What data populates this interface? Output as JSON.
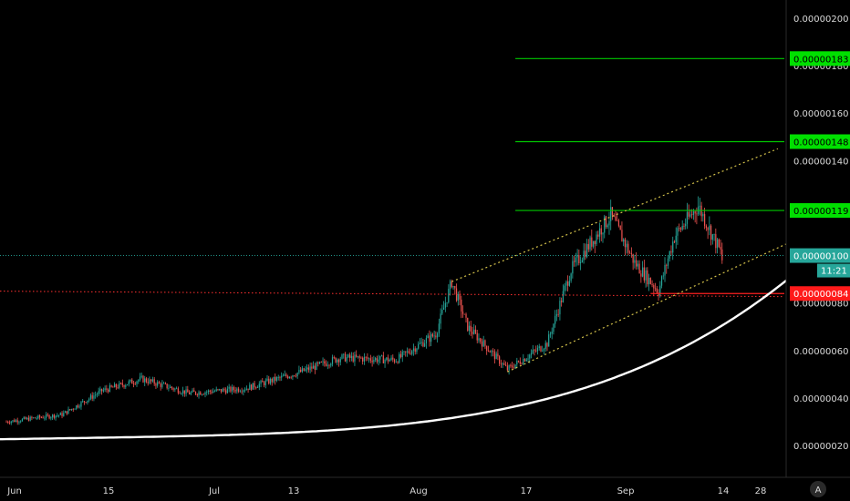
{
  "chart_data": {
    "type": "candlestick",
    "title": "",
    "x_tick_labels": [
      "Jun",
      "15",
      "Jul",
      "13",
      "Aug",
      "17",
      "Sep",
      "14",
      "28"
    ],
    "y_ticks": [
      "0.00000020",
      "0.00000040",
      "0.00000060",
      "0.00000080",
      "0.00000100",
      "0.00000120",
      "0.00000140",
      "0.00000160",
      "0.00000180",
      "0.00000200"
    ],
    "y_tick_values": [
      20,
      40,
      60,
      80,
      100,
      120,
      140,
      160,
      180,
      200
    ],
    "ylim": [
      11,
      210
    ],
    "grid": false,
    "price_scale": "right",
    "current_price": {
      "label": "0.00000100",
      "value": 100,
      "countdown": "11:21",
      "color": "#26a69a"
    },
    "levels": [
      {
        "label": "0.00000183",
        "value": 183,
        "color": "#00c800",
        "label_bg": "#00e000"
      },
      {
        "label": "0.00000148",
        "value": 148,
        "color": "#00c800",
        "label_bg": "#00e000"
      },
      {
        "label": "0.00000119",
        "value": 119,
        "color": "#00c800",
        "label_bg": "#00e000"
      },
      {
        "label": "0.00000084",
        "value": 84,
        "color": "#ff2020",
        "label_bg": "#ff1a1a"
      }
    ],
    "support_line": {
      "value": 85,
      "color": "#ff3030",
      "style": "dotted"
    },
    "channel": {
      "upper": [
        [
          "Jul 27",
          89
        ],
        [
          "Sep 6",
          145
        ]
      ],
      "lower": [
        [
          "Aug 3",
          51
        ],
        [
          "Sep 13",
          114
        ]
      ],
      "color": "#d4c24a"
    },
    "parabolic_curve": {
      "color": "#ffffff",
      "points": [
        [
          "Jun 1",
          23
        ],
        [
          "Jul 1",
          33
        ],
        [
          "Aug 1",
          50
        ],
        [
          "Aug 22",
          70
        ],
        [
          "Sep 10",
          110
        ],
        [
          "Sep 26",
          152
        ]
      ]
    },
    "candles_daily_summary": [
      {
        "x": "Jun 1",
        "close": 30
      },
      {
        "x": "Jun 8",
        "close": 33
      },
      {
        "x": "Jun 13",
        "close": 43
      },
      {
        "x": "Jun 18",
        "close": 48
      },
      {
        "x": "Jun 24",
        "close": 42
      },
      {
        "x": "Jul 1",
        "close": 44
      },
      {
        "x": "Jul 8",
        "close": 51
      },
      {
        "x": "Jul 13",
        "close": 57
      },
      {
        "x": "Jul 20",
        "close": 56
      },
      {
        "x": "Jul 25",
        "close": 67
      },
      {
        "x": "Jul 27",
        "close": 89
      },
      {
        "x": "Jul 29",
        "close": 70
      },
      {
        "x": "Aug 3",
        "close": 52
      },
      {
        "x": "Aug 8",
        "close": 63
      },
      {
        "x": "Aug 11",
        "close": 94
      },
      {
        "x": "Aug 16",
        "close": 117
      },
      {
        "x": "Aug 19",
        "close": 97
      },
      {
        "x": "Aug 22",
        "close": 85
      },
      {
        "x": "Aug 24",
        "close": 108
      },
      {
        "x": "Aug 27",
        "close": 121
      },
      {
        "x": "Aug 30",
        "close": 100
      }
    ],
    "colors": {
      "up": "#26a69a",
      "down": "#ef5350",
      "background": "#000000"
    }
  }
}
